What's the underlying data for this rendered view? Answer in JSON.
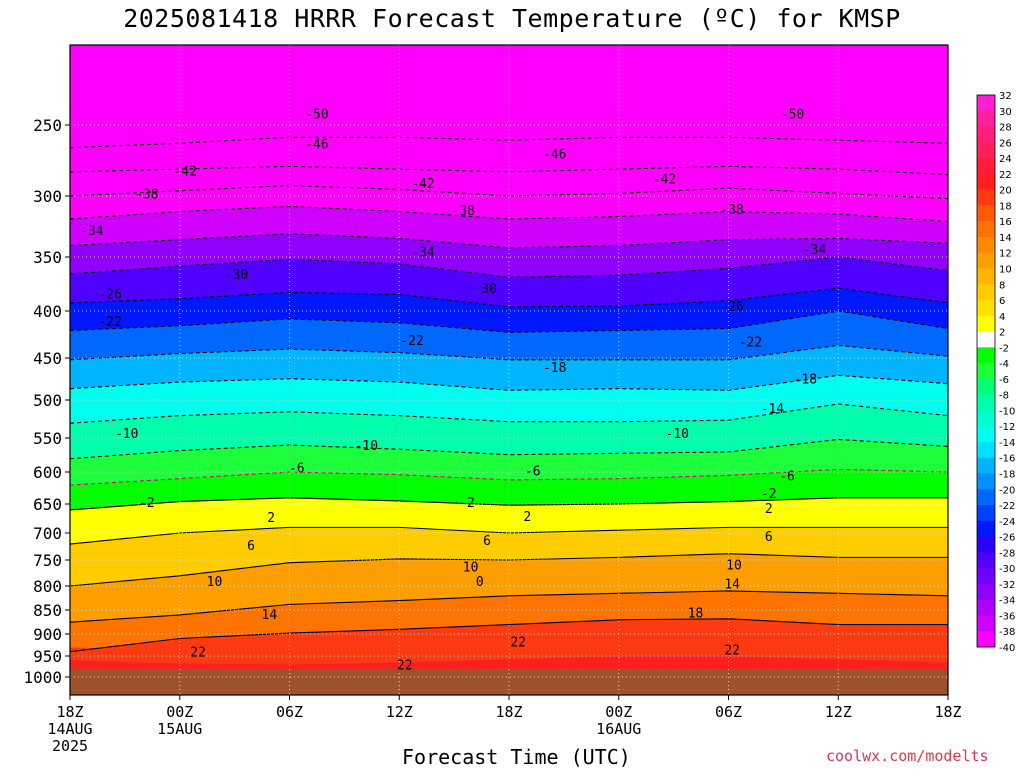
{
  "title": "2025081418 HRRR Forecast Temperature (ºC) for KMSP",
  "xlabel": "Forecast Time (UTC)",
  "credit": "coolwx.com/modelts",
  "chart_data": {
    "type": "heatmap",
    "title": "2025081418 HRRR Forecast Temperature (ºC) for KMSP",
    "xlabel": "Forecast Time (UTC)",
    "ylabel": "",
    "x_ticks": [
      {
        "hour": 0,
        "lines": [
          "18Z",
          "14AUG",
          "2025"
        ]
      },
      {
        "hour": 6,
        "lines": [
          "00Z",
          "15AUG"
        ]
      },
      {
        "hour": 12,
        "lines": [
          "06Z"
        ]
      },
      {
        "hour": 18,
        "lines": [
          "12Z"
        ]
      },
      {
        "hour": 24,
        "lines": [
          "18Z"
        ]
      },
      {
        "hour": 30,
        "lines": [
          "00Z",
          "16AUG"
        ]
      },
      {
        "hour": 36,
        "lines": [
          "06Z"
        ]
      },
      {
        "hour": 42,
        "lines": [
          "12Z"
        ]
      },
      {
        "hour": 48,
        "lines": [
          "18Z"
        ]
      }
    ],
    "xlim": [
      0,
      48
    ],
    "y_ticks": [
      250,
      300,
      350,
      400,
      450,
      500,
      550,
      600,
      650,
      700,
      750,
      800,
      850,
      900,
      950,
      1000
    ],
    "ylim": [
      1030,
      200
    ],
    "y_scale": "log-pressure",
    "grid": true,
    "surface_pressure_hPa": 980,
    "colorbar": {
      "labels": [
        "32",
        "30",
        "28",
        "26",
        "24",
        "22",
        "20",
        "18",
        "16",
        "14",
        "12",
        "10",
        "8",
        "6",
        "4",
        "2",
        "-2",
        "-4",
        "-6",
        "-8",
        "-10",
        "-12",
        "-14",
        "-16",
        "-18",
        "-20",
        "-22",
        "-24",
        "-26",
        "-28",
        "-30",
        "-32",
        "-34",
        "-36",
        "-38",
        "-40"
      ],
      "colors": [
        "#ff1fd0",
        "#ff1f9f",
        "#ff1f7a",
        "#ff1f5f",
        "#ff1c3c",
        "#ff1f1f",
        "#ff3a10",
        "#ff5a00",
        "#ff7400",
        "#ff8a00",
        "#ff9e00",
        "#ffb400",
        "#ffcc00",
        "#ffe000",
        "#ffff00",
        "#ffffff",
        "#00ff00",
        "#1eff3c",
        "#00ff78",
        "#00ffaa",
        "#00ffcc",
        "#00ffee",
        "#00e0ff",
        "#00b4ff",
        "#0090ff",
        "#0068ff",
        "#0040ff",
        "#0018ff",
        "#2a00ff",
        "#5000ff",
        "#7000ff",
        "#9000ff",
        "#b000ff",
        "#d000ff",
        "#ff00ff"
      ]
    },
    "contours": [
      {
        "level": -50,
        "pressure": [
          265,
          262,
          258,
          258,
          260,
          258,
          258,
          260,
          262
        ],
        "dashed": true
      },
      {
        "level": -46,
        "pressure": [
          282,
          280,
          278,
          280,
          282,
          280,
          278,
          280,
          284
        ],
        "dashed": true
      },
      {
        "level": -42,
        "pressure": [
          300,
          296,
          292,
          295,
          300,
          298,
          294,
          298,
          302
        ],
        "dashed": true
      },
      {
        "level": -38,
        "pressure": [
          318,
          312,
          308,
          312,
          318,
          316,
          312,
          314,
          320
        ],
        "dashed": true
      },
      {
        "level": -34,
        "pressure": [
          340,
          335,
          330,
          334,
          342,
          340,
          335,
          334,
          338
        ],
        "dashed": true
      },
      {
        "level": -30,
        "pressure": [
          365,
          358,
          352,
          356,
          368,
          366,
          360,
          350,
          362
        ],
        "dashed": true
      },
      {
        "level": -26,
        "pressure": [
          392,
          388,
          382,
          384,
          396,
          395,
          390,
          378,
          392
        ],
        "dashed": true
      },
      {
        "level": -22,
        "pressure": [
          420,
          415,
          408,
          412,
          422,
          420,
          418,
          400,
          418
        ],
        "dashed": true
      },
      {
        "level": -18,
        "pressure": [
          452,
          445,
          440,
          444,
          452,
          452,
          452,
          436,
          448
        ],
        "dashed": true
      },
      {
        "level": -14,
        "pressure": [
          486,
          478,
          474,
          478,
          488,
          486,
          488,
          470,
          480
        ],
        "dashed": true
      },
      {
        "level": -10,
        "pressure": [
          530,
          520,
          515,
          520,
          528,
          528,
          526,
          505,
          520
        ],
        "dashed": true
      },
      {
        "level": -6,
        "pressure": [
          580,
          568,
          560,
          566,
          574,
          572,
          570,
          552,
          562
        ],
        "dashed": true
      },
      {
        "level": -2,
        "pressure": [
          620,
          610,
          600,
          604,
          612,
          610,
          605,
          596,
          600
        ],
        "dashed": true
      },
      {
        "level": 2,
        "pressure": [
          660,
          646,
          640,
          645,
          652,
          650,
          646,
          640,
          640
        ],
        "dashed": false
      },
      {
        "level": 6,
        "pressure": [
          720,
          700,
          690,
          690,
          700,
          695,
          690,
          690,
          690
        ],
        "dashed": false
      },
      {
        "level": 10,
        "pressure": [
          800,
          780,
          755,
          748,
          750,
          745,
          738,
          745,
          745
        ],
        "dashed": false
      },
      {
        "level": 14,
        "pressure": [
          875,
          860,
          838,
          830,
          820,
          815,
          810,
          815,
          820
        ],
        "dashed": false
      },
      {
        "level": 18,
        "pressure": [
          940,
          910,
          898,
          890,
          880,
          870,
          868,
          880,
          880
        ],
        "dashed": false
      }
    ],
    "contour_labels": [
      {
        "text": "-50",
        "hour": 13.5,
        "pressure": 242
      },
      {
        "text": "-50",
        "hour": 39.5,
        "pressure": 242
      },
      {
        "text": "-46",
        "hour": 13.5,
        "pressure": 262
      },
      {
        "text": "-46",
        "hour": 26.5,
        "pressure": 269
      },
      {
        "text": "-42",
        "hour": 6.3,
        "pressure": 281
      },
      {
        "text": "-42",
        "hour": 19.3,
        "pressure": 290
      },
      {
        "text": "-42",
        "hour": 32.5,
        "pressure": 287
      },
      {
        "text": "-38",
        "hour": 4.2,
        "pressure": 298
      },
      {
        "text": "-38",
        "hour": 21.5,
        "pressure": 311
      },
      {
        "text": "-38",
        "hour": 36.2,
        "pressure": 310
      },
      {
        "text": "-34",
        "hour": 1.2,
        "pressure": 327
      },
      {
        "text": "-34",
        "hour": 19.3,
        "pressure": 345
      },
      {
        "text": "-34",
        "hour": 40.7,
        "pressure": 343
      },
      {
        "text": "-30",
        "hour": 9.1,
        "pressure": 365
      },
      {
        "text": "-30",
        "hour": 22.7,
        "pressure": 378
      },
      {
        "text": "-26",
        "hour": 2.2,
        "pressure": 383
      },
      {
        "text": "-26",
        "hour": 36.2,
        "pressure": 395
      },
      {
        "text": "-22",
        "hour": 2.2,
        "pressure": 410
      },
      {
        "text": "-22",
        "hour": 18.7,
        "pressure": 430
      },
      {
        "text": "-22",
        "hour": 37.2,
        "pressure": 432
      },
      {
        "text": "-18",
        "hour": 26.5,
        "pressure": 460
      },
      {
        "text": "-18",
        "hour": 40.2,
        "pressure": 474
      },
      {
        "text": "-14",
        "hour": 38.4,
        "pressure": 510
      },
      {
        "text": "-10",
        "hour": 3.1,
        "pressure": 543
      },
      {
        "text": "-10",
        "hour": 16.2,
        "pressure": 560
      },
      {
        "text": "-10",
        "hour": 33.2,
        "pressure": 543
      },
      {
        "text": "-6",
        "hour": 12.4,
        "pressure": 593
      },
      {
        "text": "-6",
        "hour": 25.3,
        "pressure": 598
      },
      {
        "text": "-6",
        "hour": 39.2,
        "pressure": 605
      },
      {
        "text": "-2",
        "hour": 4.2,
        "pressure": 647
      },
      {
        "text": "-2",
        "hour": 21.7,
        "pressure": 647
      },
      {
        "text": "-2",
        "hour": 38.2,
        "pressure": 632
      },
      {
        "text": "2",
        "hour": 11.0,
        "pressure": 672
      },
      {
        "text": "2",
        "hour": 25.0,
        "pressure": 670
      },
      {
        "text": "2",
        "hour": 38.2,
        "pressure": 657
      },
      {
        "text": "6",
        "hour": 9.9,
        "pressure": 722
      },
      {
        "text": "6",
        "hour": 22.8,
        "pressure": 713
      },
      {
        "text": "6",
        "hour": 38.2,
        "pressure": 705
      },
      {
        "text": "10",
        "hour": 7.9,
        "pressure": 790
      },
      {
        "text": "10",
        "hour": 21.9,
        "pressure": 762
      },
      {
        "text": "10",
        "hour": 36.3,
        "pressure": 758
      },
      {
        "text": "14",
        "hour": 10.9,
        "pressure": 858
      },
      {
        "text": "14",
        "hour": 36.2,
        "pressure": 795
      },
      {
        "text": "18",
        "hour": 34.2,
        "pressure": 855
      },
      {
        "text": "22",
        "hour": 7.0,
        "pressure": 940
      },
      {
        "text": "22",
        "hour": 24.5,
        "pressure": 917
      },
      {
        "text": "22",
        "hour": 18.3,
        "pressure": 970
      },
      {
        "text": "22",
        "hour": 36.2,
        "pressure": 935
      },
      {
        "text": "0",
        "hour": 22.4,
        "pressure": 790
      }
    ]
  }
}
